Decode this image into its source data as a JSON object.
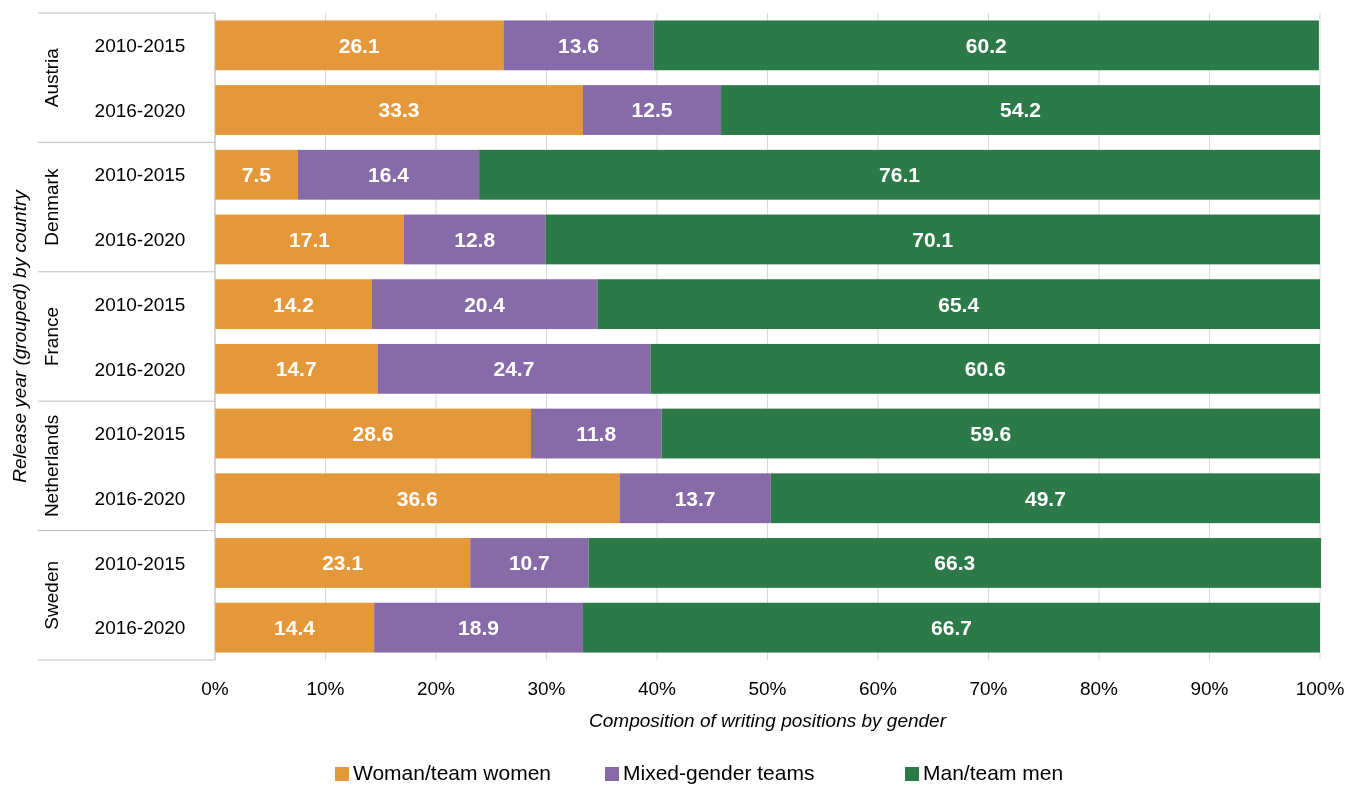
{
  "chart_data": {
    "type": "bar",
    "orientation": "horizontal",
    "stacked": true,
    "xlabel": "Composition of writing positions by gender",
    "ylabel": "Release year (grouped) by country",
    "categories": [
      "2010-2015",
      "2016-2020",
      "2010-2015",
      "2016-2020",
      "2010-2015",
      "2016-2020",
      "2010-2015",
      "2016-2020",
      "2010-2015",
      "2016-2020"
    ],
    "annotations": [
      "Austria",
      "Denmark",
      "France",
      "Netherlands",
      "Sweden"
    ],
    "series": [
      {
        "name": "Woman/team women",
        "color": "#e5983a",
        "values": [
          26.1,
          33.3,
          7.5,
          17.1,
          14.2,
          14.7,
          28.6,
          36.6,
          23.1,
          14.4
        ]
      },
      {
        "name": "Mixed-gender teams",
        "color": "#876ba8",
        "values": [
          13.6,
          12.5,
          16.4,
          12.8,
          20.4,
          24.7,
          11.8,
          13.7,
          10.7,
          18.9
        ]
      },
      {
        "name": "Man/team men",
        "color": "#2b7a47",
        "values": [
          60.2,
          54.2,
          76.1,
          70.1,
          65.4,
          60.6,
          59.6,
          49.7,
          66.3,
          66.7
        ]
      }
    ],
    "xlim": [
      0,
      100
    ],
    "xticks": [
      {
        "value": 0,
        "label": "0%"
      },
      {
        "value": 10,
        "label": "10%"
      },
      {
        "value": 20,
        "label": "20%"
      },
      {
        "value": 30,
        "label": "30%"
      },
      {
        "value": 40,
        "label": "40%"
      },
      {
        "value": 50,
        "label": "50%"
      },
      {
        "value": 60,
        "label": "60%"
      },
      {
        "value": 70,
        "label": "70%"
      },
      {
        "value": 80,
        "label": "80%"
      },
      {
        "value": 90,
        "label": "90%"
      },
      {
        "value": 100,
        "label": "100%"
      }
    ],
    "grid": "x",
    "data_labels": true,
    "legend": "bottom"
  }
}
